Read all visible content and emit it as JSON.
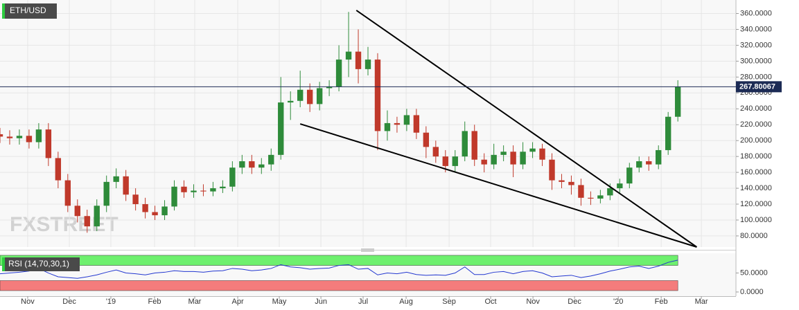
{
  "chart_data": {
    "type": "candlestick",
    "title": "ETH/USD",
    "watermark": "FXSTREET",
    "x": [
      0,
      1,
      2,
      3,
      4,
      5,
      6,
      7,
      8,
      9,
      10,
      11,
      12,
      13,
      14,
      15,
      16,
      17,
      18,
      19,
      20,
      21,
      22,
      23,
      24,
      25,
      26,
      27,
      28,
      29,
      30,
      31,
      32,
      33,
      34,
      35,
      36,
      37,
      38,
      39,
      40,
      41,
      42,
      43,
      44,
      45,
      46,
      47,
      48,
      49,
      50,
      51,
      52,
      53,
      54,
      55,
      56,
      57,
      58,
      59,
      60,
      61,
      62,
      63,
      64,
      65,
      66,
      67,
      68,
      69,
      70
    ],
    "open": [
      208,
      205,
      203,
      206,
      198,
      214,
      178,
      150,
      118,
      105,
      92,
      118,
      148,
      155,
      132,
      120,
      110,
      106,
      117,
      142,
      135,
      137,
      136,
      140,
      142,
      166,
      174,
      166,
      170,
      182,
      248,
      250,
      264,
      246,
      266,
      268,
      302,
      312,
      290,
      302,
      212,
      222,
      220,
      232,
      210,
      192,
      180,
      168,
      180,
      212,
      176,
      170,
      182,
      186,
      170,
      186,
      190,
      176,
      150,
      148,
      144,
      128,
      127,
      131,
      140,
      146,
      166,
      174,
      170,
      188,
      230
    ],
    "high": [
      216,
      213,
      214,
      214,
      222,
      222,
      186,
      158,
      126,
      113,
      126,
      156,
      165,
      163,
      140,
      128,
      118,
      125,
      150,
      150,
      145,
      145,
      148,
      150,
      174,
      182,
      182,
      178,
      190,
      280,
      262,
      288,
      272,
      274,
      276,
      320,
      362,
      340,
      318,
      310,
      238,
      230,
      240,
      240,
      218,
      200,
      188,
      188,
      224,
      220,
      184,
      196,
      194,
      194,
      198,
      198,
      196,
      184,
      158,
      156,
      152,
      136,
      138,
      146,
      152,
      172,
      180,
      180,
      194,
      236,
      276
    ],
    "low": [
      197,
      195,
      195,
      190,
      190,
      168,
      140,
      110,
      97,
      84,
      86,
      110,
      140,
      124,
      112,
      102,
      100,
      100,
      112,
      128,
      128,
      130,
      130,
      134,
      136,
      158,
      158,
      158,
      162,
      176,
      226,
      242,
      236,
      238,
      256,
      262,
      280,
      272,
      282,
      188,
      200,
      210,
      212,
      202,
      178,
      172,
      160,
      160,
      174,
      168,
      160,
      164,
      174,
      154,
      164,
      178,
      168,
      138,
      140,
      132,
      118,
      119,
      121,
      125,
      134,
      140,
      160,
      162,
      164,
      182,
      224
    ],
    "close": [
      205,
      203,
      206,
      198,
      214,
      178,
      150,
      118,
      105,
      92,
      118,
      148,
      155,
      132,
      120,
      110,
      106,
      117,
      142,
      135,
      137,
      136,
      140,
      142,
      166,
      174,
      166,
      170,
      182,
      248,
      250,
      264,
      246,
      266,
      268,
      302,
      312,
      290,
      302,
      212,
      222,
      220,
      232,
      210,
      192,
      180,
      168,
      180,
      212,
      176,
      170,
      182,
      186,
      170,
      186,
      190,
      176,
      150,
      148,
      144,
      128,
      127,
      131,
      140,
      146,
      166,
      174,
      170,
      188,
      230,
      268
    ],
    "up_color": "#2e8b3a",
    "down_color": "#c0392b",
    "last_price": 267.80067,
    "xlim": [
      0,
      76
    ],
    "xticks": [
      {
        "value": 2.86,
        "label": "Nov"
      },
      {
        "value": 7.16,
        "label": "Dec"
      },
      {
        "value": 11.45,
        "label": "'19"
      },
      {
        "value": 15.96,
        "label": "Feb"
      },
      {
        "value": 20.11,
        "label": "Mar"
      },
      {
        "value": 24.55,
        "label": "Apr"
      },
      {
        "value": 28.84,
        "label": "May"
      },
      {
        "value": 33.14,
        "label": "Jun"
      },
      {
        "value": 37.5,
        "label": "Jul"
      },
      {
        "value": 41.94,
        "label": "Aug"
      },
      {
        "value": 46.38,
        "label": "Sep"
      },
      {
        "value": 50.67,
        "label": "Oct"
      },
      {
        "value": 55.04,
        "label": "Nov"
      },
      {
        "value": 59.33,
        "label": "Dec"
      },
      {
        "value": 63.85,
        "label": "'20"
      },
      {
        "value": 68.28,
        "label": "Feb"
      },
      {
        "value": 72.43,
        "label": "Mar"
      }
    ],
    "ylim": [
      66,
      377
    ],
    "yticks": [
      {
        "value": 80,
        "label": "80.0000"
      },
      {
        "value": 100,
        "label": "100.0000"
      },
      {
        "value": 120,
        "label": "120.0000"
      },
      {
        "value": 140,
        "label": "140.0000"
      },
      {
        "value": 160,
        "label": "160.0000"
      },
      {
        "value": 180,
        "label": "180.0000"
      },
      {
        "value": 200,
        "label": "200.0000"
      },
      {
        "value": 220,
        "label": "220.0000"
      },
      {
        "value": 240,
        "label": "240.0000"
      },
      {
        "value": 260,
        "label": "260.0000"
      },
      {
        "value": 280,
        "label": "280.0000"
      },
      {
        "value": 300,
        "label": "300.0000"
      },
      {
        "value": 320,
        "label": "320.0000"
      },
      {
        "value": 340,
        "label": "340.0000"
      },
      {
        "value": 360,
        "label": "360.0000"
      }
    ],
    "grid": true,
    "trendlines": [
      {
        "x": [
          36.8,
          71.95
        ],
        "y": [
          364,
          66
        ]
      },
      {
        "x": [
          31,
          71.95
        ],
        "y": [
          221,
          66
        ]
      }
    ],
    "indicator": {
      "name": "RSI (14,70,30,1)",
      "color": "#2236d0",
      "upper": 70,
      "lower": 30,
      "upper_color": "#6ef06e",
      "lower_color": "#f47c7c",
      "values": [
        48,
        50,
        52,
        55,
        62,
        50,
        40,
        38,
        36,
        40,
        45,
        52,
        58,
        50,
        48,
        45,
        50,
        52,
        56,
        54,
        54,
        52,
        55,
        56,
        62,
        60,
        56,
        58,
        62,
        72,
        66,
        64,
        60,
        62,
        63,
        70,
        72,
        60,
        62,
        45,
        50,
        48,
        52,
        46,
        44,
        45,
        44,
        50,
        66,
        46,
        46,
        52,
        54,
        48,
        54,
        56,
        50,
        40,
        42,
        44,
        38,
        42,
        48,
        55,
        60,
        66,
        68,
        62,
        68,
        78,
        84
      ],
      "ylim": [
        -11,
        102
      ],
      "yticks": [
        {
          "value": 0,
          "label": "0.0000"
        },
        {
          "value": 50,
          "label": "50.0000"
        }
      ]
    }
  }
}
